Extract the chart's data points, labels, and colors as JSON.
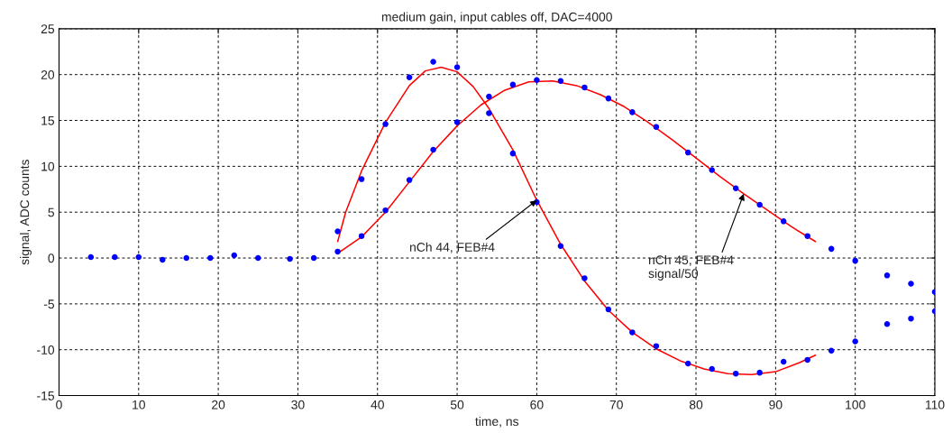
{
  "chart_data": {
    "type": "scatter",
    "title": "medium gain, input cables off, DAC=4000",
    "xlabel": "time, ns",
    "ylabel": "signal, ADC counts",
    "xlim": [
      0,
      110
    ],
    "xticks": [
      0,
      10,
      20,
      30,
      40,
      50,
      60,
      70,
      80,
      90,
      100,
      110
    ],
    "ylim": [
      -15,
      25
    ],
    "yticks": [
      -15,
      -10,
      -5,
      0,
      5,
      10,
      15,
      20,
      25
    ],
    "grid": true,
    "series": [
      {
        "marker": "circle",
        "color": "#0000ff",
        "x": [
          4,
          7,
          10,
          13,
          16,
          19,
          22,
          25,
          29,
          32
        ],
        "values": [
          0.1,
          0.1,
          0.1,
          -0.2,
          0,
          0,
          0.3,
          0,
          -0.1,
          0
        ]
      },
      {
        "marker": "circle",
        "color": "#0000ff",
        "x": [
          35,
          38,
          41,
          44,
          47,
          50,
          54,
          57,
          60,
          63,
          66,
          69,
          72,
          75,
          79,
          82,
          85,
          88,
          91,
          94,
          97,
          100,
          104,
          107,
          110
        ],
        "values": [
          2.9,
          8.6,
          14.6,
          19.7,
          21.4,
          20.8,
          15.8,
          11.4,
          6.1,
          1.3,
          -2.2,
          -5.6,
          -8.1,
          -9.6,
          -11.5,
          -12.1,
          -12.6,
          -12.5,
          -11.3,
          -11.1,
          -10.1,
          -9.1,
          -7.2,
          -6.6,
          -5.8
        ]
      },
      {
        "marker": "circle",
        "color": "#0000ff",
        "x": [
          35,
          38,
          41,
          44,
          47,
          50,
          54,
          57,
          60,
          63,
          66,
          69,
          72,
          75,
          79,
          82,
          85,
          88,
          91,
          94,
          97,
          100,
          104,
          107,
          110
        ],
        "values": [
          0.7,
          2.4,
          5.2,
          8.5,
          11.8,
          14.8,
          17.6,
          18.9,
          19.4,
          19.3,
          18.6,
          17.4,
          15.9,
          14.3,
          11.5,
          9.6,
          7.6,
          5.8,
          4.0,
          2.4,
          1.0,
          -0.3,
          -1.9,
          -2.8,
          -3.7
        ]
      },
      {
        "type": "line",
        "color": "#ff0000",
        "x": [
          35,
          36,
          38,
          41,
          44,
          46,
          48,
          50,
          52,
          54,
          57,
          60,
          63,
          66,
          69,
          72,
          75,
          78,
          81,
          84,
          87,
          90,
          93,
          95
        ],
        "values": [
          1.8,
          5,
          9.5,
          14.8,
          18.8,
          20.4,
          20.8,
          20.3,
          18.7,
          16.3,
          11.8,
          6.3,
          1.5,
          -2.5,
          -5.7,
          -8.1,
          -9.9,
          -11.2,
          -12.1,
          -12.6,
          -12.7,
          -12.4,
          -11.4,
          -10.6
        ]
      },
      {
        "type": "line",
        "color": "#ff0000",
        "x": [
          35,
          38,
          41,
          44,
          47,
          50,
          53,
          56,
          59,
          62,
          65,
          68,
          71,
          74,
          77,
          80,
          83,
          86,
          89,
          92,
          95
        ],
        "values": [
          0.5,
          2.3,
          5.0,
          8.3,
          11.6,
          14.4,
          16.7,
          18.3,
          19.2,
          19.3,
          18.8,
          17.8,
          16.5,
          14.8,
          12.9,
          10.9,
          8.9,
          7.0,
          5.2,
          3.4,
          1.8
        ]
      }
    ],
    "annotations": [
      {
        "text": "nCh 44, FEB#4",
        "x": 60,
        "y": 6.3
      },
      {
        "text": "nCh 45, FEB#4\nsignal/50",
        "x": 86,
        "y": 7.0
      }
    ]
  }
}
